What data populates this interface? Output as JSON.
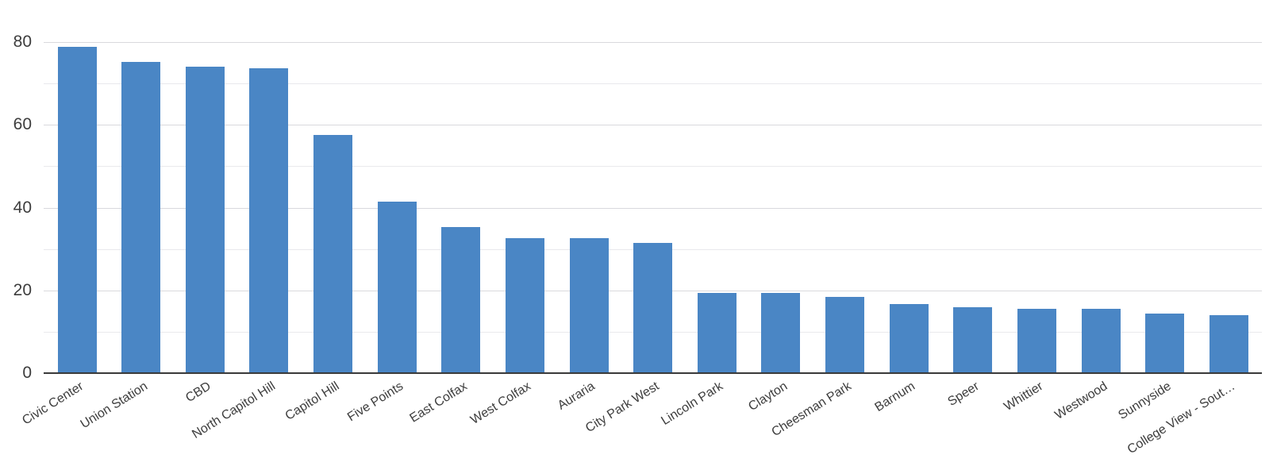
{
  "chart_data": {
    "type": "bar",
    "title": "",
    "xlabel": "",
    "ylabel": "",
    "categories": [
      "Civic Center",
      "Union Station",
      "CBD",
      "North Capitol Hill",
      "Capitol Hill",
      "Five Points",
      "East Colfax",
      "West Colfax",
      "Auraria",
      "City Park West",
      "Lincoln Park",
      "Clayton",
      "Cheesman Park",
      "Barnum",
      "Speer",
      "Whittier",
      "Westwood",
      "Sunnyside",
      "College View - Sout…"
    ],
    "values": [
      78.8,
      75.2,
      74.1,
      73.6,
      57.5,
      41.4,
      35.3,
      32.6,
      32.6,
      31.5,
      19.3,
      19.3,
      18.5,
      16.7,
      16.0,
      15.6,
      15.6,
      14.4,
      14.1
    ],
    "ylim": [
      0,
      80
    ],
    "yticks": [
      0,
      20,
      40,
      60,
      80
    ],
    "ytick_labels": [
      "0",
      "20",
      "40",
      "60",
      "80"
    ],
    "gridline_step": 10,
    "grid": true,
    "legend_position": "none",
    "x_label_rotation_deg": -32,
    "colors": {
      "bar": "#4a86c5",
      "grid_major": "#d9d9dd",
      "grid_minor": "#e9e9ec",
      "axis_line": "#3a3a3a",
      "tick_label": "#3d3d3d",
      "background": "#ffffff"
    }
  }
}
